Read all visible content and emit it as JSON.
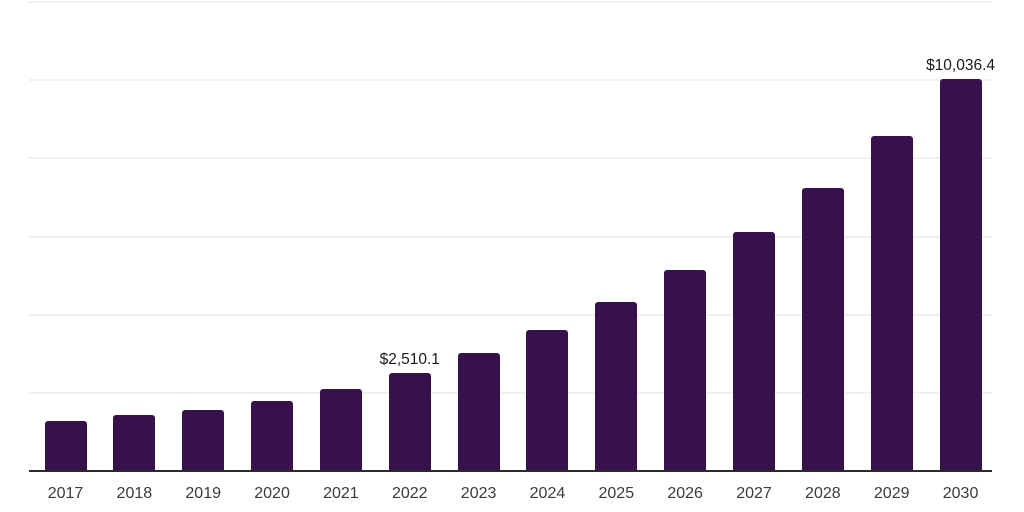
{
  "chart_data": {
    "type": "bar",
    "title": "",
    "xlabel": "",
    "ylabel": "",
    "categories": [
      "2017",
      "2018",
      "2019",
      "2020",
      "2021",
      "2022",
      "2023",
      "2024",
      "2025",
      "2026",
      "2027",
      "2028",
      "2029",
      "2030"
    ],
    "values": [
      1270,
      1425,
      1550,
      1785,
      2090,
      2510.1,
      3020,
      3610,
      4335,
      5155,
      6120,
      7235,
      8575,
      10036.4
    ],
    "data_labels": {
      "2022": "$2,510.1",
      "2030": "$10,036.4"
    },
    "ylim": [
      0,
      12000
    ],
    "grid_step": 2000,
    "grid": true,
    "legend": false,
    "y_axis_labels_visible": false,
    "bar_color": "#36114B",
    "gridline_color": "#F0F0F0",
    "axis_line_color": "#2B2B2B",
    "value_label_color": "#1A1A1A",
    "tick_label_color": "#3B3B3B",
    "background_color": "#FFFFFF"
  }
}
